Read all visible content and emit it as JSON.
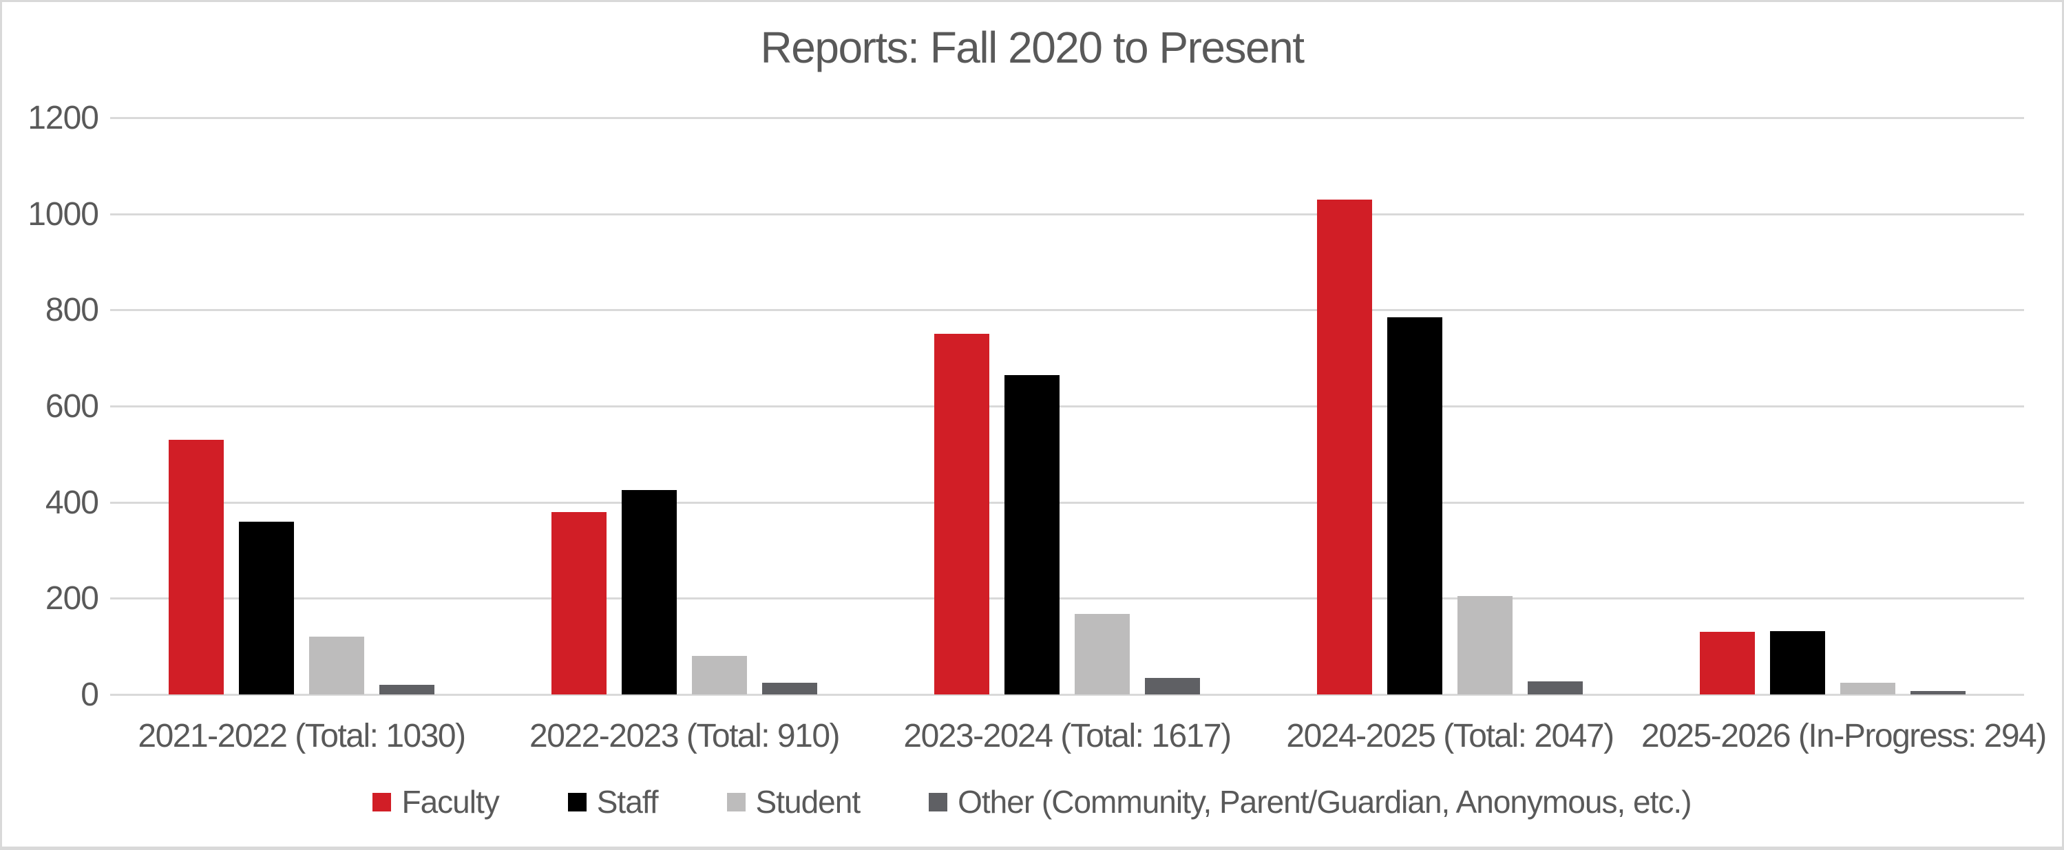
{
  "frame": {
    "background_color": "#FFFFFF",
    "border_color": "#D9D9D9"
  },
  "chart_data": {
    "type": "bar",
    "title": "Reports: Fall 2020 to Present",
    "title_color": "#595959",
    "text_color": "#595959",
    "gridline_color": "#D9D9D9",
    "axis_line_color": "#D9D9D9",
    "grid": true,
    "legend_position": "bottom",
    "ylim": [
      0,
      1200
    ],
    "yticks": [
      0,
      200,
      400,
      600,
      800,
      1000,
      1200
    ],
    "xlabel": "",
    "ylabel": "",
    "categories": [
      "2021-2022 (Total: 1030)",
      "2022-2023 (Total: 910)",
      "2023-2024 (Total: 1617)",
      "2024-2025 (Total: 2047)",
      "2025-2026 (In-Progress: 294)"
    ],
    "series": [
      {
        "name": "Faculty",
        "color": "#D11E26",
        "values": [
          530,
          380,
          750,
          1030,
          130
        ]
      },
      {
        "name": "Staff",
        "color": "#000000",
        "values": [
          360,
          425,
          665,
          785,
          132
        ]
      },
      {
        "name": "Student",
        "color": "#BDBCBC",
        "values": [
          120,
          80,
          167,
          205,
          25
        ]
      },
      {
        "name": "Other (Community, Parent/Guardian, Anonymous, etc.)",
        "color": "#5F6064",
        "values": [
          20,
          25,
          35,
          27,
          7
        ]
      }
    ]
  }
}
